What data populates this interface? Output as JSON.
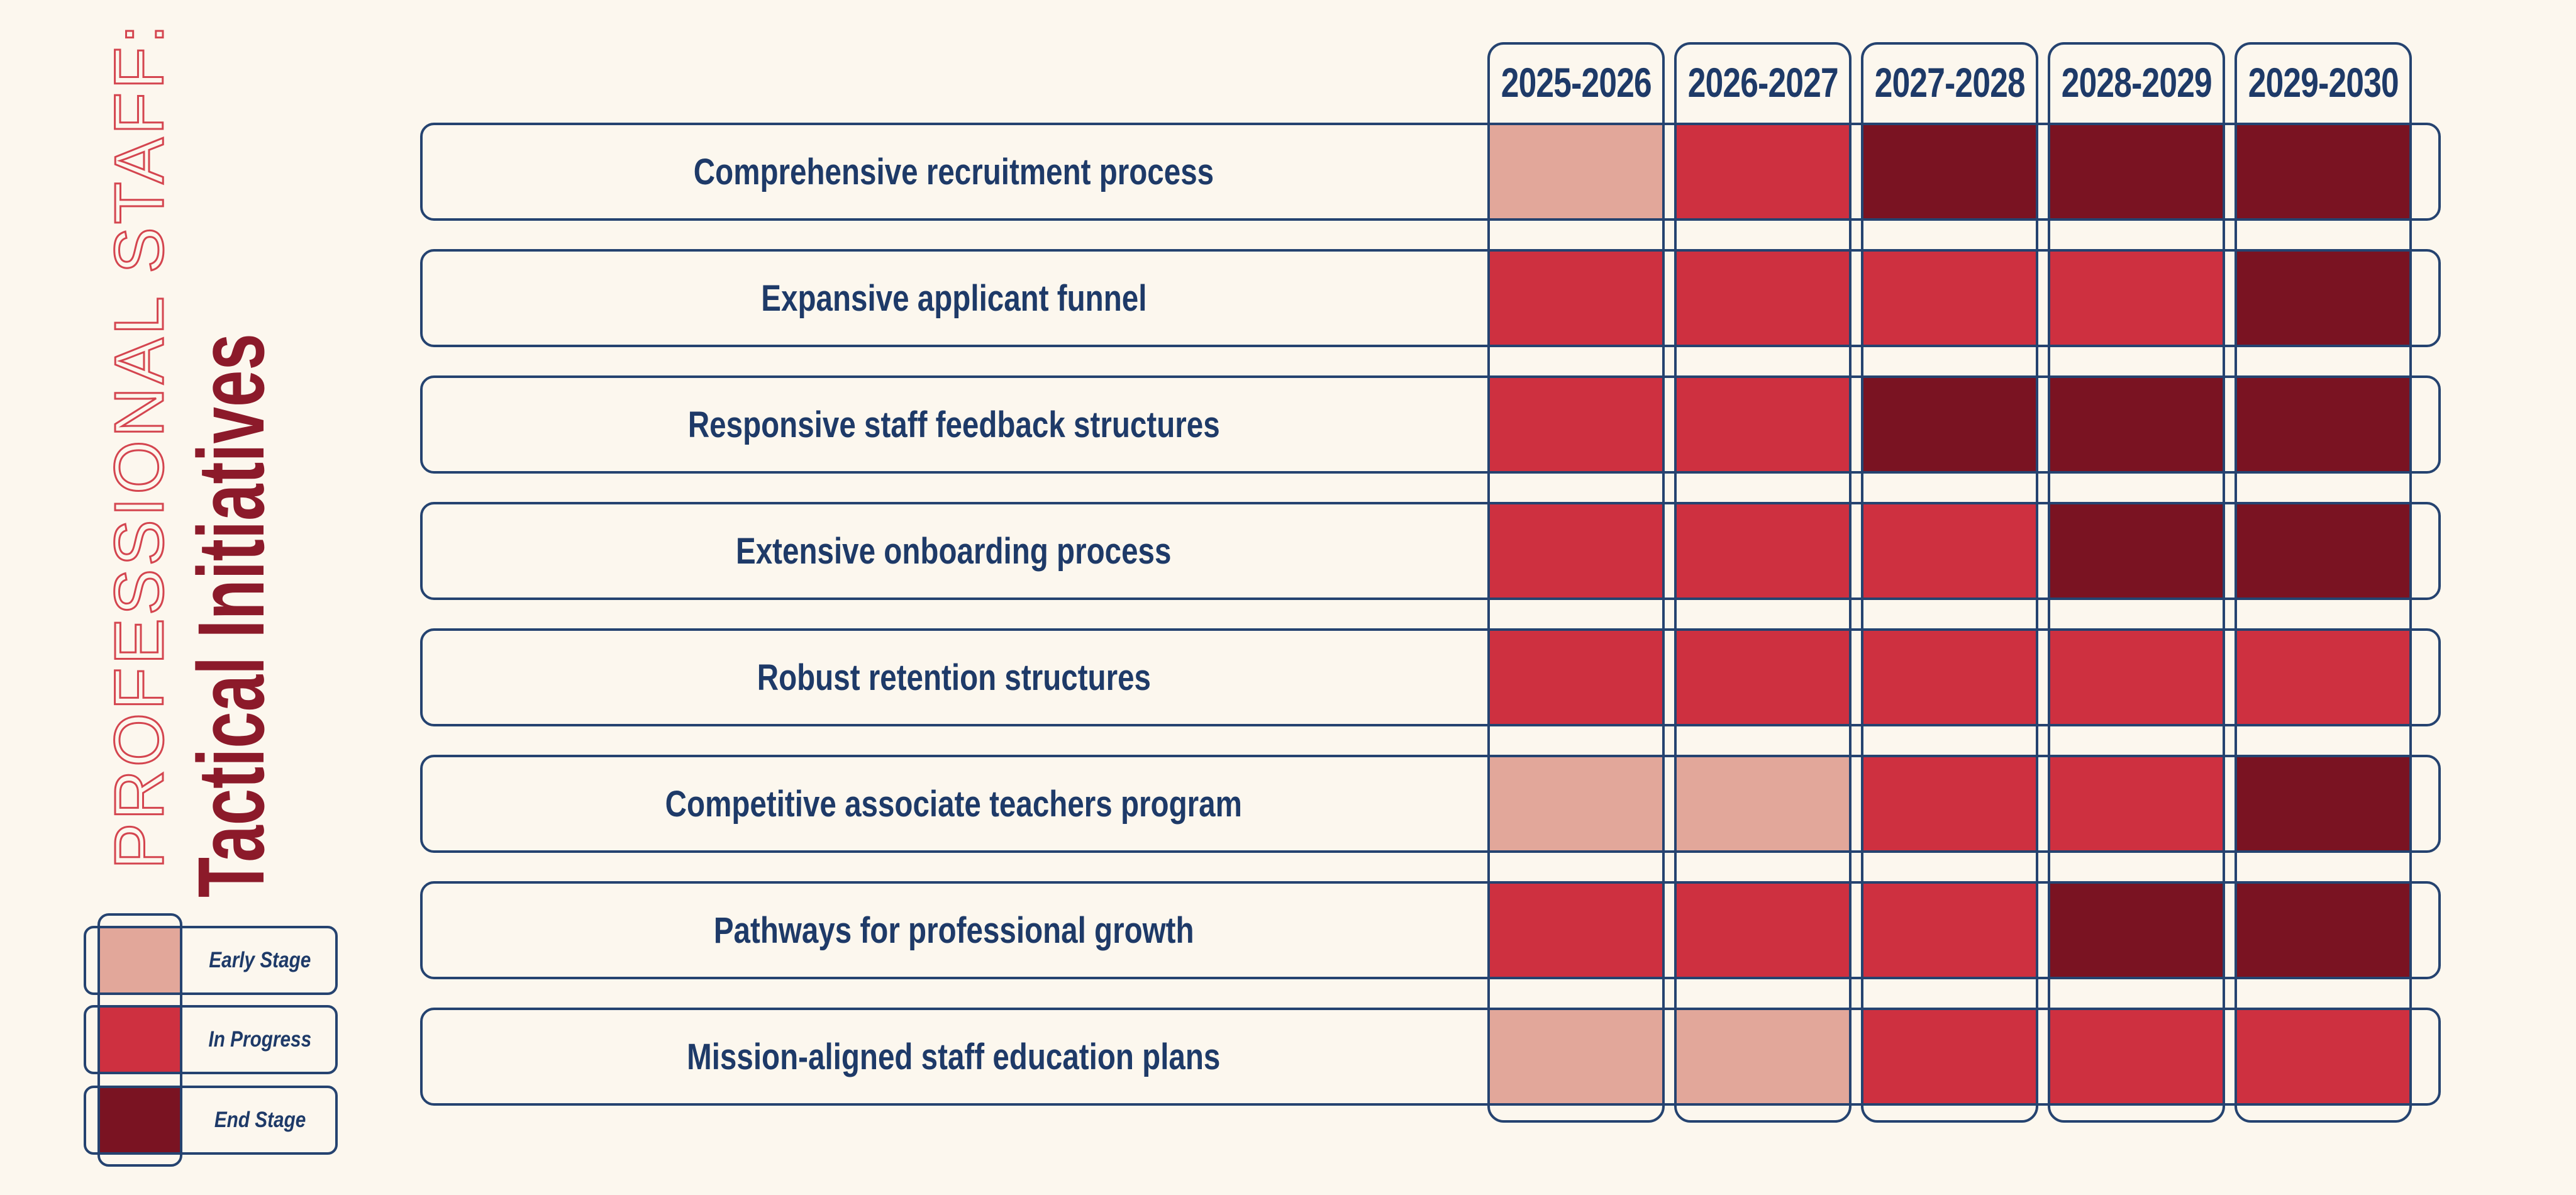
{
  "title": {
    "kicker": "PROFESSIONAL STAFF:",
    "heading": "Tactical Initiatives"
  },
  "columns": [
    "2025-2026",
    "2026-2027",
    "2027-2028",
    "2028-2029",
    "2029-2030"
  ],
  "rows": [
    {
      "label": "Comprehensive recruitment process",
      "stages": [
        "early",
        "in_progress",
        "end",
        "end",
        "end"
      ]
    },
    {
      "label": "Expansive applicant funnel",
      "stages": [
        "in_progress",
        "in_progress",
        "in_progress",
        "in_progress",
        "end"
      ]
    },
    {
      "label": "Responsive staff feedback structures",
      "stages": [
        "in_progress",
        "in_progress",
        "end",
        "end",
        "end"
      ]
    },
    {
      "label": "Extensive onboarding process",
      "stages": [
        "in_progress",
        "in_progress",
        "in_progress",
        "end",
        "end"
      ]
    },
    {
      "label": "Robust retention structures",
      "stages": [
        "in_progress",
        "in_progress",
        "in_progress",
        "in_progress",
        "in_progress"
      ]
    },
    {
      "label": "Competitive associate teachers program",
      "stages": [
        "early",
        "early",
        "in_progress",
        "in_progress",
        "end"
      ]
    },
    {
      "label": "Pathways for professional growth",
      "stages": [
        "in_progress",
        "in_progress",
        "in_progress",
        "end",
        "end"
      ]
    },
    {
      "label": "Mission-aligned staff education plans",
      "stages": [
        "early",
        "early",
        "in_progress",
        "in_progress",
        "in_progress"
      ]
    }
  ],
  "legend": {
    "items": [
      {
        "label": "Early Stage",
        "stage": "early"
      },
      {
        "label": "In Progress",
        "stage": "in_progress"
      },
      {
        "label": "End Stage",
        "stage": "end"
      }
    ]
  },
  "colors": {
    "early": "#E2A79A",
    "in_progress": "#CE3040",
    "end": "#7A1322",
    "navy": "#254370",
    "text_navy": "#1E3A68",
    "background": "#FCF7EE",
    "kicker_red": "#D4454F",
    "heading_maroon": "#8C1A2A"
  },
  "chart_data": {
    "type": "heatmap",
    "title": "PROFESSIONAL STAFF: Tactical Initiatives",
    "x_categories": [
      "2025-2026",
      "2026-2027",
      "2027-2028",
      "2028-2029",
      "2029-2030"
    ],
    "y_categories": [
      "Comprehensive recruitment process",
      "Expansive applicant funnel",
      "Responsive staff feedback structures",
      "Extensive onboarding process",
      "Robust retention structures",
      "Competitive associate teachers program",
      "Pathways for professional growth",
      "Mission-aligned staff education plans"
    ],
    "values": [
      [
        "early",
        "in_progress",
        "end",
        "end",
        "end"
      ],
      [
        "in_progress",
        "in_progress",
        "in_progress",
        "in_progress",
        "end"
      ],
      [
        "in_progress",
        "in_progress",
        "end",
        "end",
        "end"
      ],
      [
        "in_progress",
        "in_progress",
        "in_progress",
        "end",
        "end"
      ],
      [
        "in_progress",
        "in_progress",
        "in_progress",
        "in_progress",
        "in_progress"
      ],
      [
        "early",
        "early",
        "in_progress",
        "in_progress",
        "end"
      ],
      [
        "in_progress",
        "in_progress",
        "in_progress",
        "end",
        "end"
      ],
      [
        "early",
        "early",
        "in_progress",
        "in_progress",
        "in_progress"
      ]
    ],
    "value_scale": {
      "early": "Early Stage",
      "in_progress": "In Progress",
      "end": "End Stage"
    },
    "legend": [
      "Early Stage",
      "In Progress",
      "End Stage"
    ],
    "legend_position": "bottom-left",
    "grid": false
  }
}
